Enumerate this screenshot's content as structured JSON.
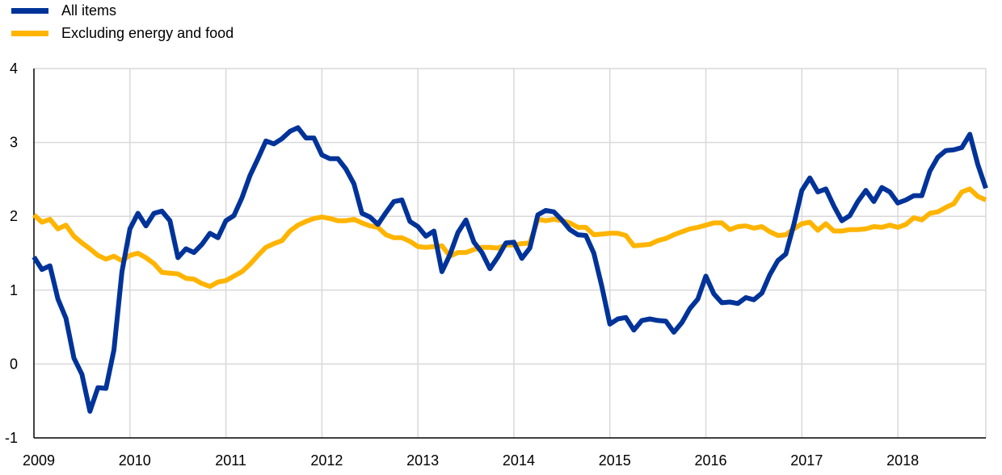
{
  "chart_data": {
    "type": "line",
    "title": "",
    "xlabel": "",
    "ylabel": "",
    "x_tick_labels": [
      "2009",
      "2010",
      "2011",
      "2012",
      "2013",
      "2014",
      "2015",
      "2016",
      "2017",
      "2018"
    ],
    "y_tick_labels": [
      "-1",
      "0",
      "1",
      "2",
      "3",
      "4"
    ],
    "ylim": [
      -1,
      4
    ],
    "xlim": [
      "2009-01",
      "2018-12"
    ],
    "grid": true,
    "legend_placement": "top-left",
    "series": [
      {
        "name": "All items",
        "color": "#003399",
        "x": [
          "2009-01",
          "2009-02",
          "2009-03",
          "2009-04",
          "2009-05",
          "2009-06",
          "2009-07",
          "2009-08",
          "2009-09",
          "2009-10",
          "2009-11",
          "2009-12",
          "2010-01",
          "2010-02",
          "2010-03",
          "2010-04",
          "2010-05",
          "2010-06",
          "2010-07",
          "2010-08",
          "2010-09",
          "2010-10",
          "2010-11",
          "2010-12",
          "2011-01",
          "2011-02",
          "2011-03",
          "2011-04",
          "2011-05",
          "2011-06",
          "2011-07",
          "2011-08",
          "2011-09",
          "2011-10",
          "2011-11",
          "2011-12",
          "2012-01",
          "2012-02",
          "2012-03",
          "2012-04",
          "2012-05",
          "2012-06",
          "2012-07",
          "2012-08",
          "2012-09",
          "2012-10",
          "2012-11",
          "2012-12",
          "2013-01",
          "2013-02",
          "2013-03",
          "2013-04",
          "2013-05",
          "2013-06",
          "2013-07",
          "2013-08",
          "2013-09",
          "2013-10",
          "2013-11",
          "2013-12",
          "2014-01",
          "2014-02",
          "2014-03",
          "2014-04",
          "2014-05",
          "2014-06",
          "2014-07",
          "2014-08",
          "2014-09",
          "2014-10",
          "2014-11",
          "2014-12",
          "2015-01",
          "2015-02",
          "2015-03",
          "2015-04",
          "2015-05",
          "2015-06",
          "2015-07",
          "2015-08",
          "2015-09",
          "2015-10",
          "2015-11",
          "2015-12",
          "2016-01",
          "2016-02",
          "2016-03",
          "2016-04",
          "2016-05",
          "2016-06",
          "2016-07",
          "2016-08",
          "2016-09",
          "2016-10",
          "2016-11",
          "2016-12",
          "2017-01",
          "2017-02",
          "2017-03",
          "2017-04",
          "2017-05",
          "2017-06",
          "2017-07",
          "2017-08",
          "2017-09",
          "2017-10",
          "2017-11",
          "2017-12",
          "2018-01",
          "2018-02",
          "2018-03",
          "2018-04",
          "2018-05",
          "2018-06",
          "2018-07",
          "2018-08",
          "2018-09",
          "2018-10",
          "2018-11",
          "2018-12"
        ],
        "values": [
          1.45,
          1.28,
          1.33,
          0.88,
          0.62,
          0.08,
          -0.14,
          -0.64,
          -0.32,
          -0.33,
          0.19,
          1.25,
          1.83,
          2.04,
          1.87,
          2.04,
          2.07,
          1.94,
          1.44,
          1.56,
          1.51,
          1.62,
          1.77,
          1.71,
          1.94,
          2.01,
          2.25,
          2.55,
          2.78,
          3.02,
          2.98,
          3.05,
          3.15,
          3.2,
          3.06,
          3.06,
          2.83,
          2.78,
          2.78,
          2.64,
          2.44,
          2.04,
          1.99,
          1.89,
          2.05,
          2.2,
          2.22,
          1.93,
          1.86,
          1.73,
          1.8,
          1.25,
          1.48,
          1.78,
          1.95,
          1.65,
          1.51,
          1.29,
          1.45,
          1.64,
          1.65,
          1.43,
          1.57,
          2.02,
          2.08,
          2.06,
          1.95,
          1.82,
          1.75,
          1.74,
          1.5,
          1.05,
          0.54,
          0.61,
          0.63,
          0.46,
          0.59,
          0.61,
          0.59,
          0.58,
          0.43,
          0.56,
          0.75,
          0.88,
          1.19,
          0.95,
          0.83,
          0.84,
          0.82,
          0.9,
          0.87,
          0.96,
          1.21,
          1.4,
          1.49,
          1.89,
          2.35,
          2.52,
          2.33,
          2.37,
          2.14,
          1.94,
          2.01,
          2.2,
          2.35,
          2.2,
          2.39,
          2.33,
          2.18,
          2.22,
          2.28,
          2.28,
          2.61,
          2.8,
          2.89,
          2.9,
          2.93,
          3.11,
          2.7,
          2.38
        ]
      },
      {
        "name": "Excluding energy and food",
        "color": "#FFB400",
        "x": [
          "2009-01",
          "2009-02",
          "2009-03",
          "2009-04",
          "2009-05",
          "2009-06",
          "2009-07",
          "2009-08",
          "2009-09",
          "2009-10",
          "2009-11",
          "2009-12",
          "2010-01",
          "2010-02",
          "2010-03",
          "2010-04",
          "2010-05",
          "2010-06",
          "2010-07",
          "2010-08",
          "2010-09",
          "2010-10",
          "2010-11",
          "2010-12",
          "2011-01",
          "2011-02",
          "2011-03",
          "2011-04",
          "2011-05",
          "2011-06",
          "2011-07",
          "2011-08",
          "2011-09",
          "2011-10",
          "2011-11",
          "2011-12",
          "2012-01",
          "2012-02",
          "2012-03",
          "2012-04",
          "2012-05",
          "2012-06",
          "2012-07",
          "2012-08",
          "2012-09",
          "2012-10",
          "2012-11",
          "2012-12",
          "2013-01",
          "2013-02",
          "2013-03",
          "2013-04",
          "2013-05",
          "2013-06",
          "2013-07",
          "2013-08",
          "2013-09",
          "2013-10",
          "2013-11",
          "2013-12",
          "2014-01",
          "2014-02",
          "2014-03",
          "2014-04",
          "2014-05",
          "2014-06",
          "2014-07",
          "2014-08",
          "2014-09",
          "2014-10",
          "2014-11",
          "2014-12",
          "2015-01",
          "2015-02",
          "2015-03",
          "2015-04",
          "2015-05",
          "2015-06",
          "2015-07",
          "2015-08",
          "2015-09",
          "2015-10",
          "2015-11",
          "2015-12",
          "2016-01",
          "2016-02",
          "2016-03",
          "2016-04",
          "2016-05",
          "2016-06",
          "2016-07",
          "2016-08",
          "2016-09",
          "2016-10",
          "2016-11",
          "2016-12",
          "2017-01",
          "2017-02",
          "2017-03",
          "2017-04",
          "2017-05",
          "2017-06",
          "2017-07",
          "2017-08",
          "2017-09",
          "2017-10",
          "2017-11",
          "2017-12",
          "2018-01",
          "2018-02",
          "2018-03",
          "2018-04",
          "2018-05",
          "2018-06",
          "2018-07",
          "2018-08",
          "2018-09",
          "2018-10",
          "2018-11",
          "2018-12"
        ],
        "values": [
          2.02,
          1.92,
          1.96,
          1.83,
          1.88,
          1.73,
          1.64,
          1.56,
          1.47,
          1.42,
          1.46,
          1.4,
          1.47,
          1.5,
          1.44,
          1.36,
          1.24,
          1.23,
          1.22,
          1.16,
          1.15,
          1.09,
          1.05,
          1.11,
          1.13,
          1.19,
          1.25,
          1.35,
          1.47,
          1.58,
          1.63,
          1.67,
          1.8,
          1.88,
          1.93,
          1.97,
          1.99,
          1.97,
          1.94,
          1.94,
          1.96,
          1.91,
          1.87,
          1.85,
          1.75,
          1.71,
          1.71,
          1.66,
          1.59,
          1.58,
          1.59,
          1.6,
          1.46,
          1.51,
          1.51,
          1.55,
          1.58,
          1.58,
          1.57,
          1.61,
          1.61,
          1.63,
          1.64,
          1.96,
          1.94,
          1.96,
          1.94,
          1.91,
          1.85,
          1.85,
          1.75,
          1.76,
          1.77,
          1.77,
          1.74,
          1.6,
          1.61,
          1.62,
          1.67,
          1.7,
          1.75,
          1.79,
          1.83,
          1.85,
          1.88,
          1.91,
          1.91,
          1.82,
          1.86,
          1.87,
          1.84,
          1.86,
          1.79,
          1.74,
          1.75,
          1.83,
          1.9,
          1.92,
          1.81,
          1.9,
          1.8,
          1.8,
          1.82,
          1.82,
          1.83,
          1.86,
          1.85,
          1.88,
          1.85,
          1.89,
          1.98,
          1.95,
          2.04,
          2.06,
          2.12,
          2.17,
          2.33,
          2.37,
          2.27,
          2.22
        ]
      }
    ]
  }
}
